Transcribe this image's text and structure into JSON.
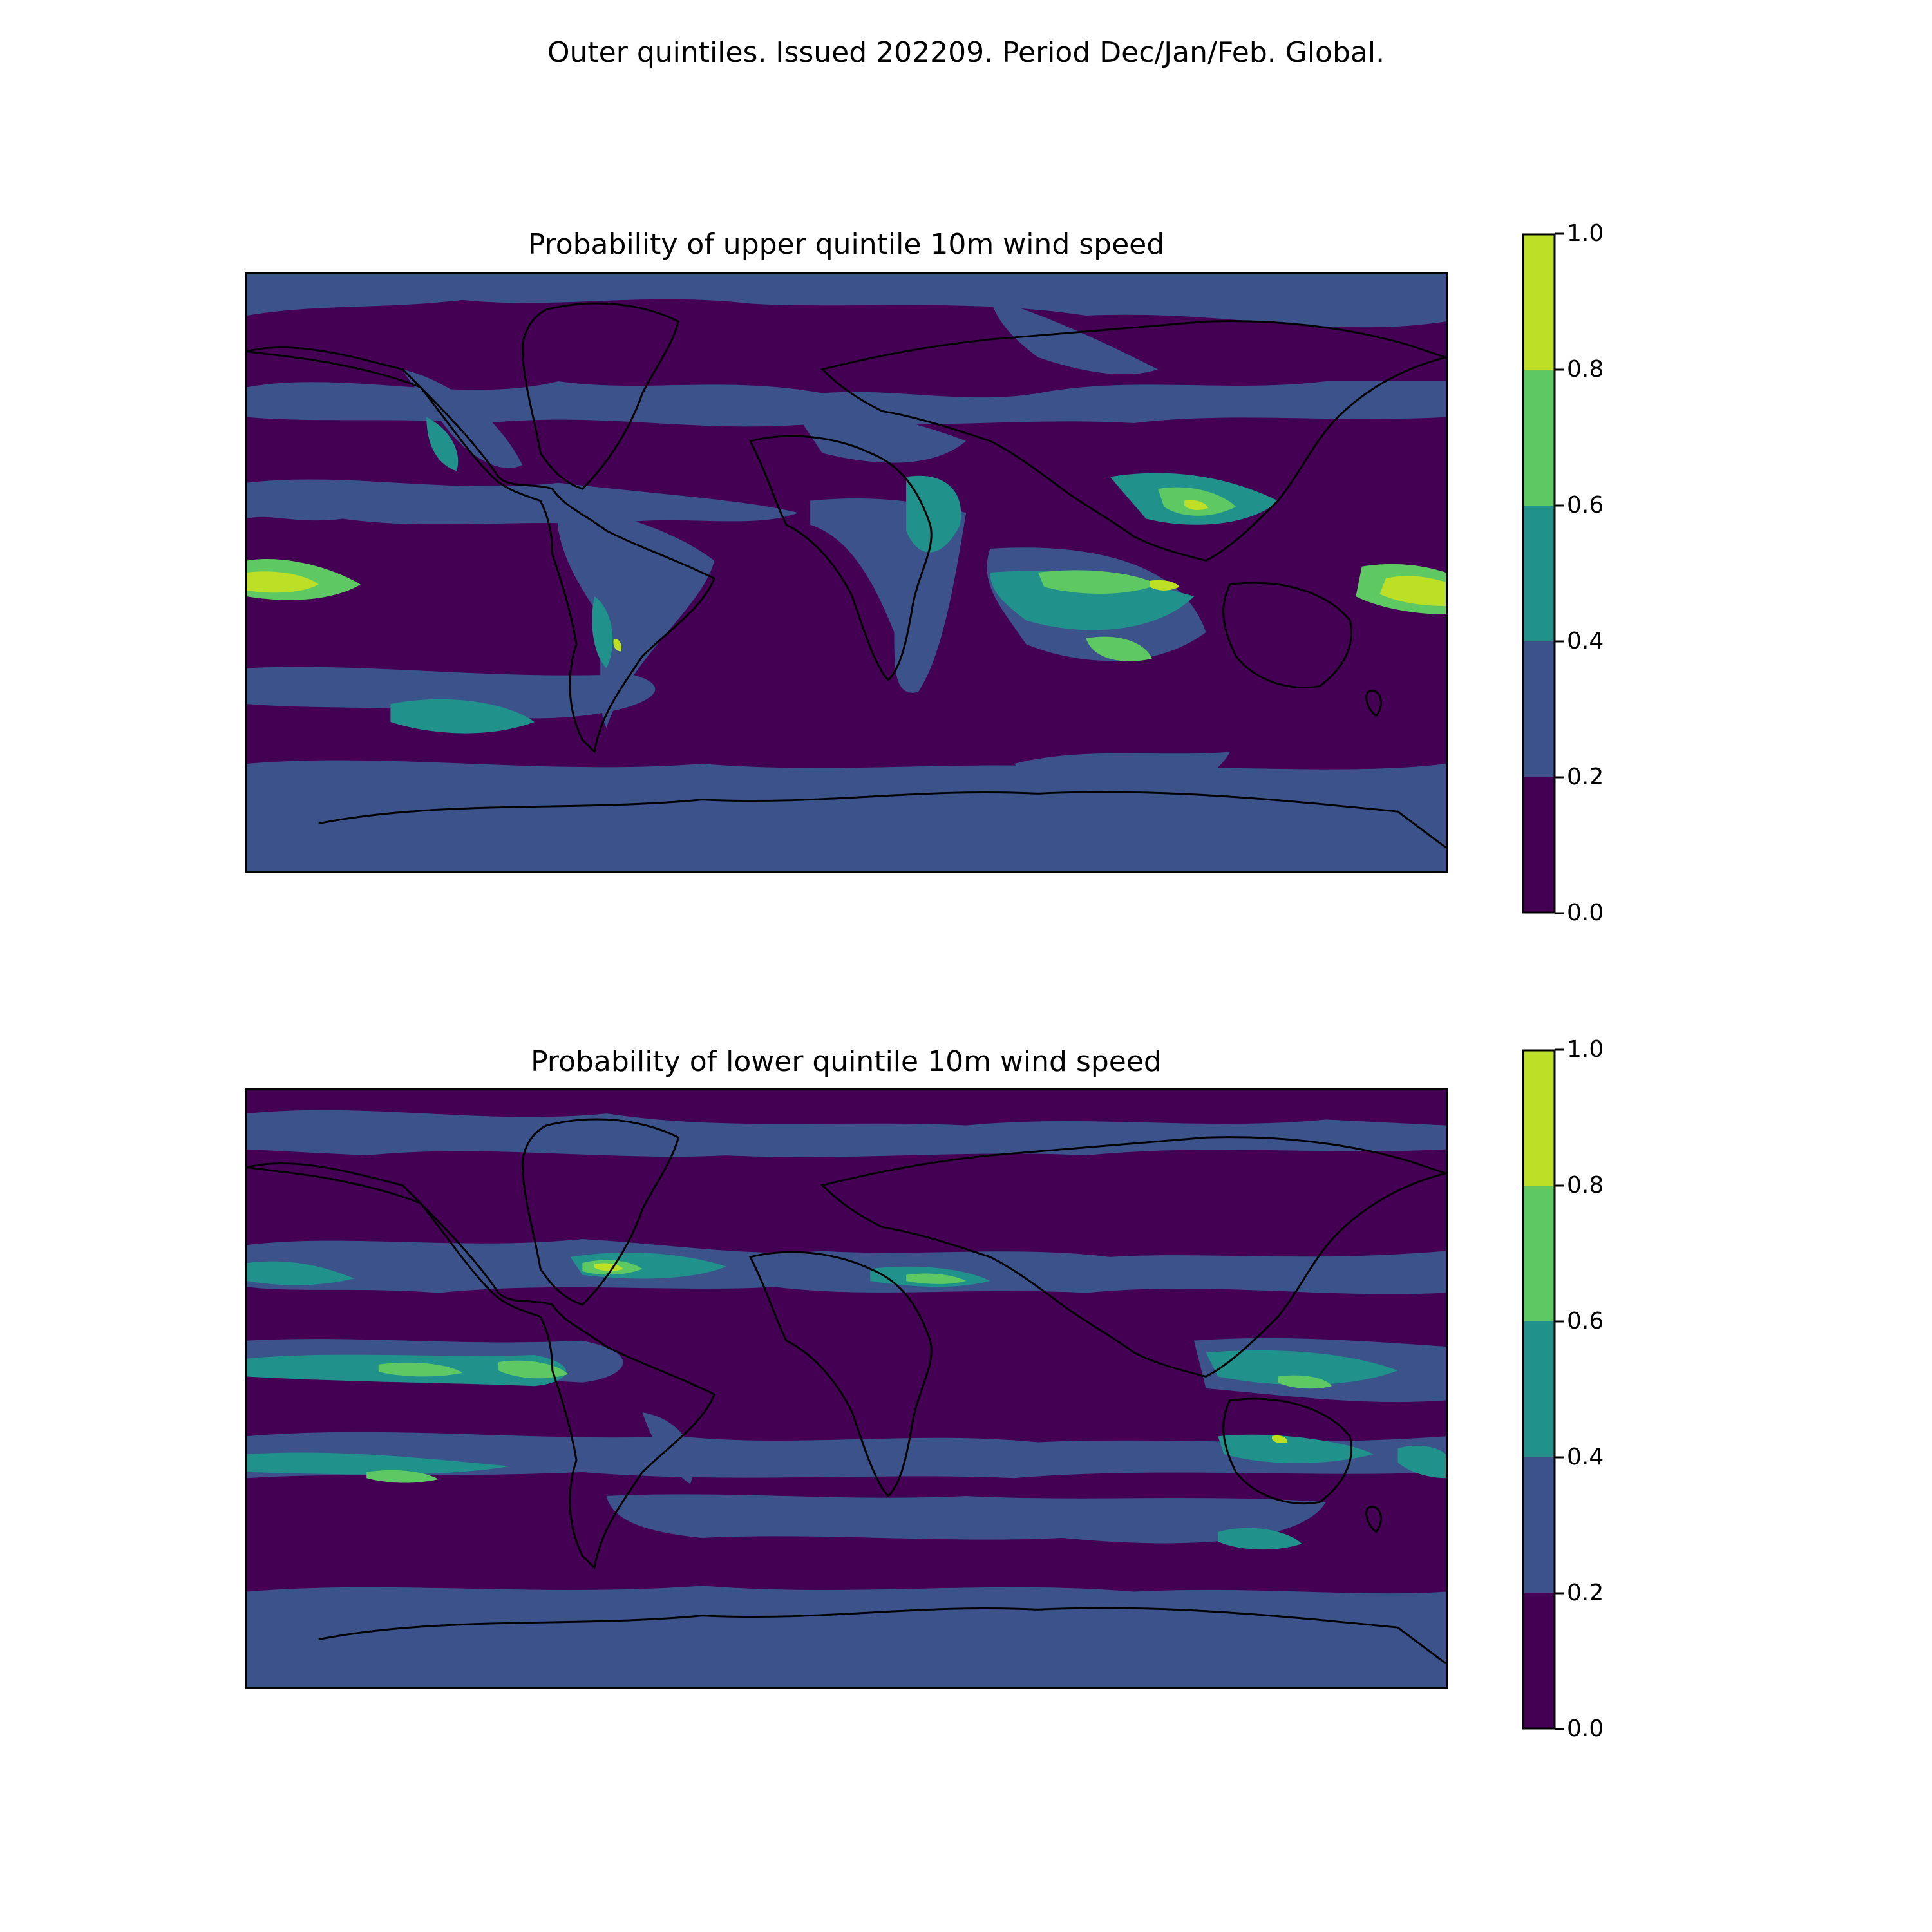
{
  "figure": {
    "suptitle": "Outer quintiles. Issued 202209. Period Dec/Jan/Feb. Global."
  },
  "panels": [
    {
      "title": "Probability of upper quintile 10m wind speed",
      "colorbar": {
        "ticks": [
          "0.0",
          "0.2",
          "0.4",
          "0.6",
          "0.8",
          "1.0"
        ]
      }
    },
    {
      "title": "Probability of lower quintile 10m wind speed",
      "colorbar": {
        "ticks": [
          "0.0",
          "0.2",
          "0.4",
          "0.6",
          "0.8",
          "1.0"
        ]
      }
    }
  ],
  "colormap": {
    "name": "viridis",
    "levels": [
      0.0,
      0.2,
      0.4,
      0.6,
      0.8,
      1.0
    ],
    "colors": [
      "#440154",
      "#3b528b",
      "#21918c",
      "#5ec962",
      "#bddf26"
    ]
  }
}
